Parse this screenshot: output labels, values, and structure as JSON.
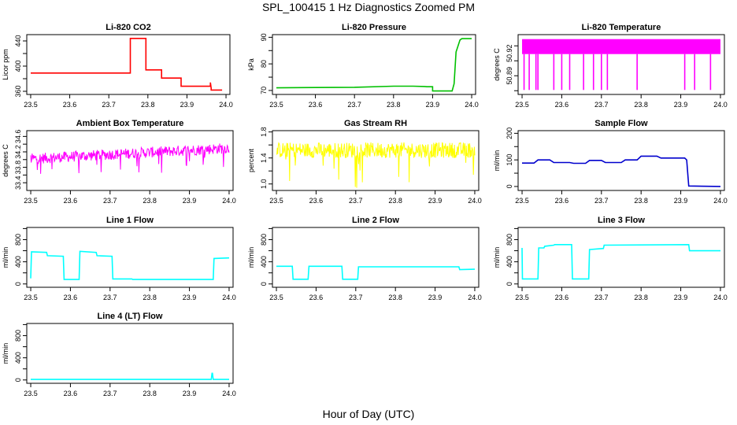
{
  "page": {
    "title": "SPL_100415  1 Hz Diagnostics Zoomed PM",
    "xlabel": "Hour of Day (UTC)"
  },
  "chart_data": [
    {
      "id": "co2",
      "type": "line",
      "title": "Li-820 CO2",
      "ylabel": "Licor ppm",
      "color": "#ff0000",
      "xlim": [
        23.49,
        24.01
      ],
      "ylim": [
        355,
        450
      ],
      "yticks": [
        360,
        380,
        400,
        420,
        440
      ],
      "ytick_labels": [
        "360",
        "",
        "400",
        "",
        "440"
      ],
      "xticks": [
        23.5,
        23.6,
        23.7,
        23.8,
        23.9,
        24.0
      ],
      "xtick_labels": [
        "23.5",
        "23.6",
        "23.7",
        "23.8",
        "23.9",
        "24.0"
      ],
      "series": [
        {
          "x": [
            23.5,
            23.755,
            23.755,
            23.795,
            23.795,
            23.835,
            23.835,
            23.885,
            23.885,
            23.96,
            23.96,
            23.962,
            23.962,
            23.99
          ],
          "y": [
            389,
            389,
            444,
            444,
            394,
            394,
            381,
            381,
            368,
            368,
            374,
            365,
            362,
            362
          ]
        }
      ]
    },
    {
      "id": "pressure",
      "type": "line",
      "title": "Li-820 Pressure",
      "ylabel": "kPa",
      "color": "#00c000",
      "xlim": [
        23.49,
        24.01
      ],
      "ylim": [
        68.5,
        91
      ],
      "yticks": [
        70,
        75,
        80,
        85,
        90
      ],
      "ytick_labels": [
        "70",
        "",
        "80",
        "",
        "90"
      ],
      "xticks": [
        23.5,
        23.6,
        23.7,
        23.8,
        23.9,
        24.0
      ],
      "xtick_labels": [
        "23.5",
        "23.6",
        "23.7",
        "23.8",
        "23.9",
        "24.0"
      ],
      "series": [
        {
          "x": [
            23.5,
            23.6,
            23.7,
            23.8,
            23.85,
            23.88,
            23.885,
            23.9,
            23.9,
            23.95,
            23.955,
            23.96,
            23.97,
            23.975,
            24.0
          ],
          "y": [
            71.0,
            71.1,
            71.2,
            71.6,
            71.6,
            71.5,
            71.4,
            71.4,
            69.8,
            69.8,
            72.5,
            84.5,
            89.0,
            89.5,
            89.5
          ]
        }
      ]
    },
    {
      "id": "licor_temp",
      "type": "line",
      "title": "Li-820 Temperature",
      "ylabel": "degrees C",
      "color": "#ff00ff",
      "xlim": [
        23.49,
        24.01
      ],
      "ylim": [
        50.865,
        50.945
      ],
      "yticks": [
        50.87,
        50.89,
        50.91,
        50.93
      ],
      "ytick_labels": [
        "50.89",
        "50.92"
      ],
      "ytick_label_values": [
        50.89,
        50.92
      ],
      "xticks": [
        23.5,
        23.6,
        23.7,
        23.8,
        23.9,
        24.0
      ],
      "xtick_labels": [
        "23.5",
        "23.6",
        "23.7",
        "23.8",
        "23.9",
        "24.0"
      ],
      "levels": [
        50.939,
        50.919
      ],
      "dips": [
        23.505,
        23.518,
        23.535,
        23.54,
        23.58,
        23.6,
        23.62,
        23.655,
        23.68,
        23.7,
        23.715,
        23.79,
        23.91,
        23.935,
        23.975
      ],
      "dip_value": 50.871
    },
    {
      "id": "box_temp",
      "type": "line",
      "title": "Ambient Box Temperature",
      "ylabel": "degrees C",
      "color": "#ff00ff",
      "xlim": [
        23.49,
        24.01
      ],
      "ylim": [
        33.2,
        34.75
      ],
      "yticks": [
        33.4,
        33.6,
        33.8,
        34.0,
        34.2,
        34.4,
        34.6
      ],
      "ytick_labels": [
        "33.4",
        "",
        "33.8",
        "",
        "34.2",
        "",
        "34.6"
      ],
      "xticks": [
        23.5,
        23.6,
        23.7,
        23.8,
        23.9,
        24.0
      ],
      "xtick_labels": [
        "23.5",
        "23.6",
        "23.7",
        "23.8",
        "23.9",
        "24.0"
      ],
      "trend": [
        [
          23.5,
          34.02
        ],
        [
          24.0,
          34.3
        ]
      ],
      "noise": 0.14
    },
    {
      "id": "rh",
      "type": "line",
      "title": "Gas Stream RH",
      "ylabel": "percent",
      "color": "#ffff00",
      "xlim": [
        23.49,
        24.01
      ],
      "ylim": [
        0.9,
        1.82
      ],
      "yticks": [
        1.0,
        1.2,
        1.4,
        1.6,
        1.8
      ],
      "ytick_labels": [
        "1.0",
        "",
        "1.4",
        "",
        "1.8"
      ],
      "xticks": [
        23.5,
        23.6,
        23.7,
        23.8,
        23.9,
        24.0
      ],
      "xtick_labels": [
        "23.5",
        "23.6",
        "23.7",
        "23.8",
        "23.9",
        "24.0"
      ],
      "trend": [
        [
          23.5,
          1.52
        ],
        [
          24.0,
          1.52
        ]
      ],
      "noise": 0.12,
      "spike_min": 0.92
    },
    {
      "id": "sample_flow",
      "type": "line",
      "title": "Sample Flow",
      "ylabel": "ml/min",
      "color": "#0000cd",
      "xlim": [
        23.49,
        24.01
      ],
      "ylim": [
        -15,
        210
      ],
      "yticks": [
        0,
        50,
        100,
        150,
        200
      ],
      "ytick_labels": [
        "0",
        "",
        "100",
        "",
        "200"
      ],
      "xticks": [
        23.5,
        23.6,
        23.7,
        23.8,
        23.9,
        24.0
      ],
      "xtick_labels": [
        "23.5",
        "23.6",
        "23.7",
        "23.8",
        "23.9",
        "24.0"
      ],
      "series": [
        {
          "x": [
            23.5,
            23.53,
            23.54,
            23.57,
            23.58,
            23.62,
            23.63,
            23.66,
            23.67,
            23.7,
            23.71,
            23.75,
            23.76,
            23.79,
            23.8,
            23.84,
            23.85,
            23.91,
            23.915,
            23.92,
            24.0
          ],
          "y": [
            88,
            88,
            100,
            100,
            90,
            90,
            87,
            87,
            98,
            98,
            90,
            90,
            100,
            100,
            114,
            114,
            107,
            107,
            100,
            2,
            0
          ]
        }
      ]
    },
    {
      "id": "line1",
      "type": "line",
      "title": "Line 1 Flow",
      "ylabel": "ml/min",
      "color": "#00ffff",
      "xlim": [
        23.49,
        24.01
      ],
      "ylim": [
        -60,
        1020
      ],
      "yticks": [
        0,
        200,
        400,
        600,
        800,
        1000
      ],
      "ytick_labels": [
        "0",
        "",
        "400",
        "",
        "800",
        ""
      ],
      "xticks": [
        23.5,
        23.6,
        23.7,
        23.8,
        23.9,
        24.0
      ],
      "xtick_labels": [
        "23.5",
        "23.6",
        "23.7",
        "23.8",
        "23.9",
        "24.0"
      ],
      "series": [
        {
          "x": [
            23.5,
            23.502,
            23.54,
            23.542,
            23.582,
            23.584,
            23.622,
            23.624,
            23.665,
            23.667,
            23.705,
            23.707,
            23.755,
            23.757,
            23.96,
            23.962,
            24.0
          ],
          "y": [
            100,
            580,
            570,
            510,
            500,
            80,
            80,
            590,
            570,
            510,
            500,
            90,
            90,
            80,
            80,
            460,
            470
          ]
        }
      ]
    },
    {
      "id": "line2",
      "type": "line",
      "title": "Line 2 Flow",
      "ylabel": "ml/min",
      "color": "#00ffff",
      "xlim": [
        23.49,
        24.01
      ],
      "ylim": [
        -60,
        1020
      ],
      "yticks": [
        0,
        200,
        400,
        600,
        800,
        1000
      ],
      "ytick_labels": [
        "0",
        "",
        "400",
        "",
        "800",
        ""
      ],
      "xticks": [
        23.5,
        23.6,
        23.7,
        23.8,
        23.9,
        24.0
      ],
      "xtick_labels": [
        "23.5",
        "23.6",
        "23.7",
        "23.8",
        "23.9",
        "24.0"
      ],
      "series": [
        {
          "x": [
            23.5,
            23.54,
            23.542,
            23.58,
            23.582,
            23.665,
            23.667,
            23.705,
            23.707,
            23.96,
            23.962,
            24.0
          ],
          "y": [
            320,
            320,
            85,
            85,
            320,
            320,
            85,
            85,
            310,
            310,
            260,
            265
          ]
        }
      ]
    },
    {
      "id": "line3",
      "type": "line",
      "title": "Line 3 Flow",
      "ylabel": "ml/min",
      "color": "#00ffff",
      "xlim": [
        23.49,
        24.01
      ],
      "ylim": [
        -60,
        1020
      ],
      "yticks": [
        0,
        200,
        400,
        600,
        800,
        1000
      ],
      "ytick_labels": [
        "0",
        "",
        "400",
        "",
        "800",
        ""
      ],
      "xticks": [
        23.5,
        23.6,
        23.7,
        23.8,
        23.9,
        24.0
      ],
      "xtick_labels": [
        "23.5",
        "23.6",
        "23.7",
        "23.8",
        "23.9",
        "24.0"
      ],
      "series": [
        {
          "x": [
            23.5,
            23.501,
            23.502,
            23.54,
            23.542,
            23.555,
            23.557,
            23.58,
            23.582,
            23.625,
            23.627,
            23.668,
            23.67,
            23.705,
            23.707,
            23.92,
            23.922,
            24.0
          ],
          "y": [
            650,
            90,
            90,
            90,
            650,
            650,
            680,
            700,
            710,
            710,
            90,
            90,
            620,
            640,
            700,
            710,
            600,
            600
          ]
        }
      ]
    },
    {
      "id": "line4",
      "type": "line",
      "title": "Line 4 (LT) Flow",
      "ylabel": "ml/min",
      "color": "#00ffff",
      "xlim": [
        23.49,
        24.01
      ],
      "ylim": [
        -60,
        1020
      ],
      "yticks": [
        0,
        200,
        400,
        600,
        800,
        1000
      ],
      "ytick_labels": [
        "0",
        "",
        "400",
        "",
        "800",
        ""
      ],
      "xticks": [
        23.5,
        23.6,
        23.7,
        23.8,
        23.9,
        24.0
      ],
      "xtick_labels": [
        "23.5",
        "23.6",
        "23.7",
        "23.8",
        "23.9",
        "24.0"
      ],
      "series": [
        {
          "x": [
            23.5,
            23.955,
            23.957,
            23.958,
            23.96,
            24.0
          ],
          "y": [
            10,
            10,
            120,
            120,
            10,
            10
          ]
        }
      ]
    }
  ]
}
